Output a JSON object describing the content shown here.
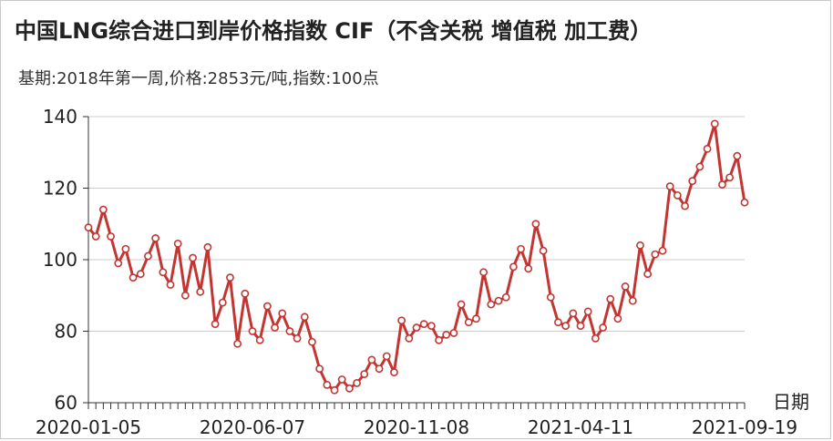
{
  "chart_data": {
    "type": "line",
    "title": "中国LNG综合进口到岸价格指数  CIF（不含关税 增值税 加工费）",
    "subtitle": "基期:2018年第一周,价格:2853元/吨,指数:100点",
    "xlabel": "日期",
    "ylabel": "",
    "ylim": [
      60,
      140
    ],
    "yticks": [
      60,
      80,
      100,
      120,
      140
    ],
    "x_tick_labels": [
      "2020-01-05",
      "2020-06-07",
      "2020-11-08",
      "2021-04-11",
      "2021-09-19"
    ],
    "grid": true,
    "series": [
      {
        "name": "",
        "color": "#c23531",
        "values": [
          109,
          106.5,
          114,
          106.5,
          99,
          103,
          95,
          96,
          101,
          106,
          96.5,
          93,
          104.5,
          90,
          100.5,
          91,
          103.5,
          82,
          88,
          95,
          76.5,
          90.5,
          80,
          77.5,
          87,
          81,
          85,
          80,
          78,
          84,
          77,
          69.5,
          65,
          63.5,
          66.5,
          64,
          65.5,
          68,
          72,
          69.5,
          73,
          68.5,
          83,
          78,
          81,
          82,
          81.5,
          77.5,
          79,
          79.5,
          87.5,
          82.5,
          83.5,
          96.5,
          87.5,
          88.5,
          89.5,
          98,
          103,
          97.5,
          110,
          102.5,
          89.5,
          82.5,
          81.5,
          85,
          81.5,
          85.5,
          78,
          81,
          89,
          83.5,
          92.5,
          88.5,
          104,
          96,
          101.5,
          102.5,
          120.5,
          118,
          115,
          122,
          126,
          131,
          138,
          121,
          123,
          129,
          116
        ]
      }
    ]
  }
}
